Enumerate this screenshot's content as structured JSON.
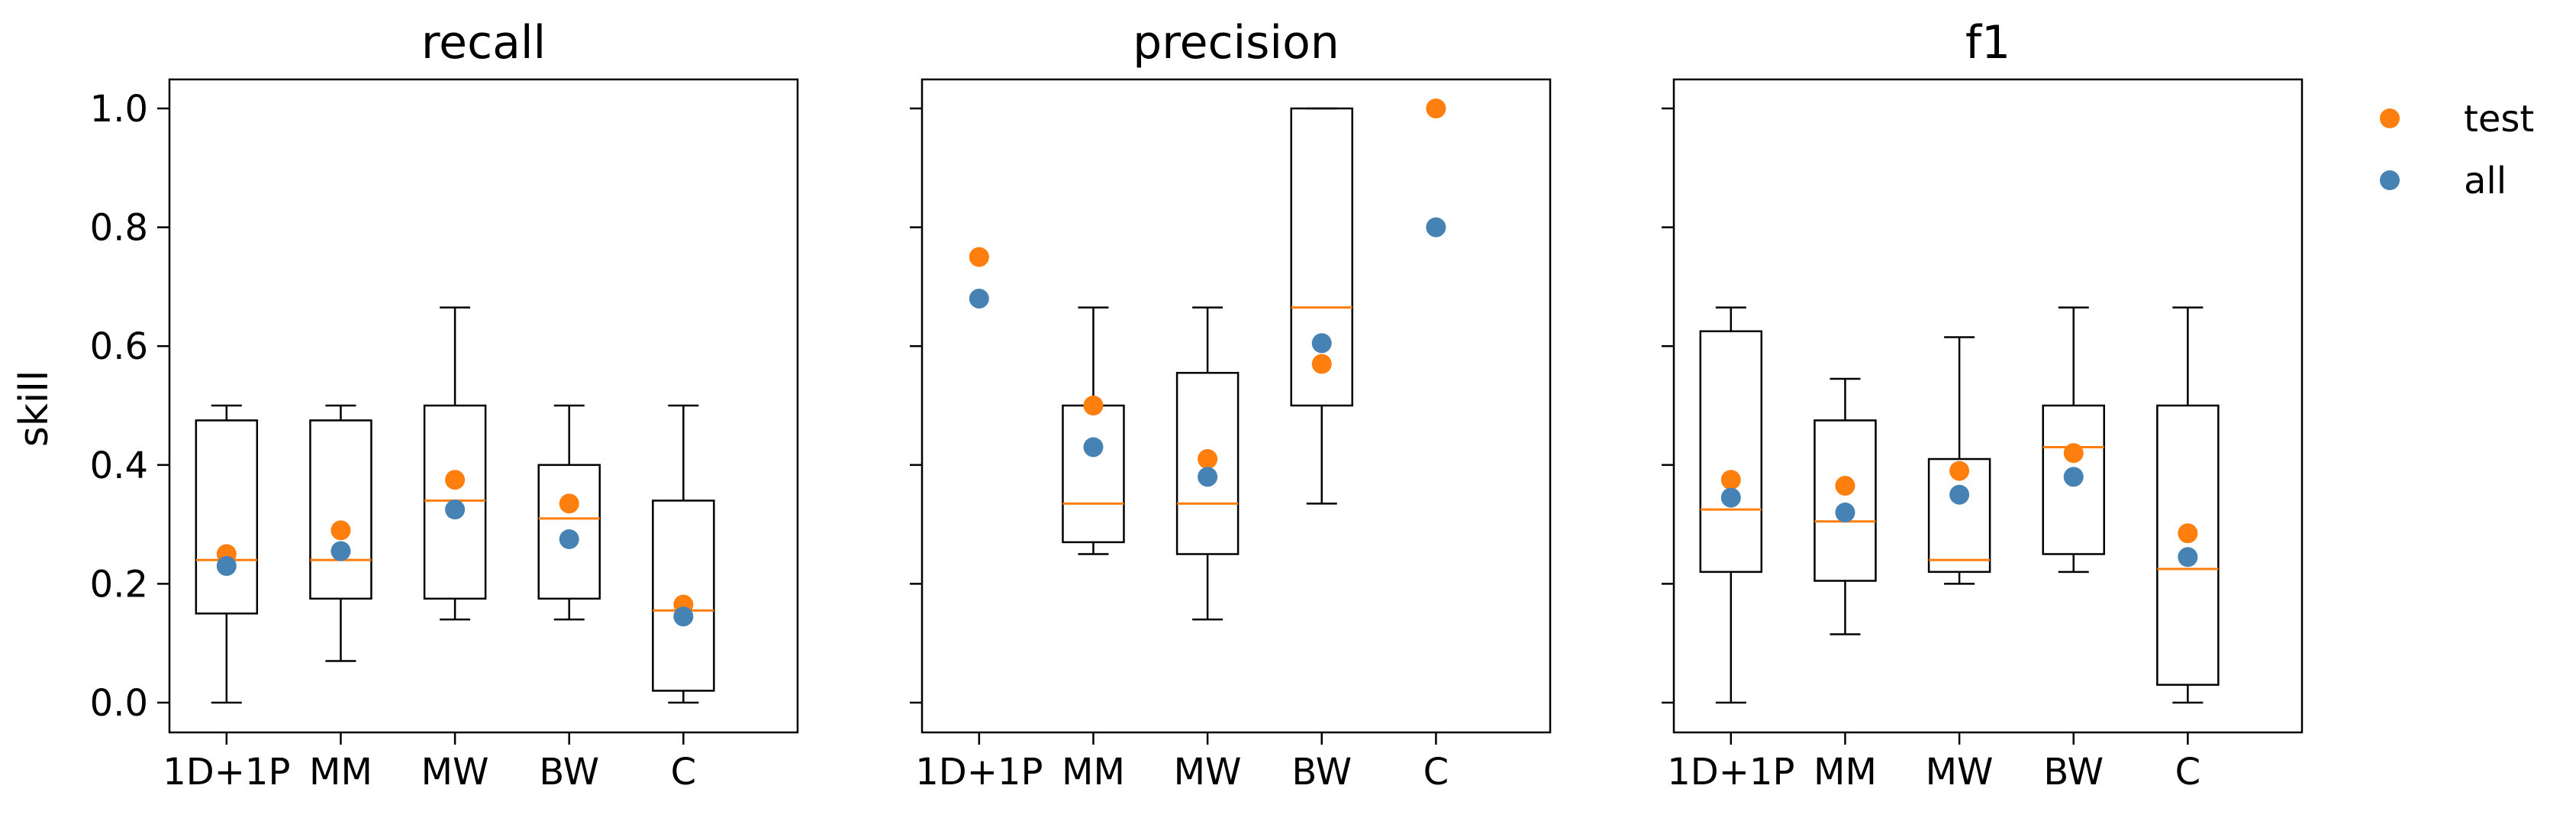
{
  "chart_data": {
    "type": "box",
    "ylabel": "skill",
    "ylim": [
      -0.05,
      1.05
    ],
    "yticks": [
      0.0,
      0.2,
      0.4,
      0.6,
      0.8,
      1.0
    ],
    "ytick_labels": [
      "0.0",
      "0.2",
      "0.4",
      "0.6",
      "0.8",
      "1.0"
    ],
    "categories": [
      "1D+1P",
      "MM",
      "MW",
      "BW",
      "C"
    ],
    "legend": {
      "position": "top-right",
      "entries": [
        {
          "label": "test",
          "color": "#ff7f0e"
        },
        {
          "label": "all",
          "color": "#4682b4"
        }
      ]
    },
    "colors": {
      "median": "#ff7f0e",
      "test": "#ff7f0e",
      "all": "#4682b4",
      "box": "#000000"
    },
    "panels": [
      {
        "title": "recall",
        "boxes": [
          {
            "category": "1D+1P",
            "whislo": 0.0,
            "q1": 0.15,
            "med": 0.24,
            "q3": 0.475,
            "whishi": 0.5
          },
          {
            "category": "MM",
            "whislo": 0.07,
            "q1": 0.175,
            "med": 0.24,
            "q3": 0.475,
            "whishi": 0.5
          },
          {
            "category": "MW",
            "whislo": 0.14,
            "q1": 0.175,
            "med": 0.34,
            "q3": 0.5,
            "whishi": 0.665
          },
          {
            "category": "BW",
            "whislo": 0.14,
            "q1": 0.175,
            "med": 0.31,
            "q3": 0.4,
            "whishi": 0.5
          },
          {
            "category": "C",
            "whislo": 0.0,
            "q1": 0.02,
            "med": 0.155,
            "q3": 0.34,
            "whishi": 0.5
          }
        ],
        "test": [
          0.25,
          0.29,
          0.375,
          0.335,
          0.165
        ],
        "all": [
          0.23,
          0.255,
          0.325,
          0.275,
          0.145
        ]
      },
      {
        "title": "precision",
        "boxes": [
          null,
          {
            "category": "MM",
            "whislo": 0.25,
            "q1": 0.27,
            "med": 0.335,
            "q3": 0.5,
            "whishi": 0.665
          },
          {
            "category": "MW",
            "whislo": 0.14,
            "q1": 0.25,
            "med": 0.335,
            "q3": 0.555,
            "whishi": 0.665
          },
          {
            "category": "BW",
            "whislo": 0.335,
            "q1": 0.5,
            "med": 0.665,
            "q3": 1.0,
            "whishi": 1.0
          },
          null
        ],
        "test": [
          0.75,
          0.5,
          0.41,
          0.57,
          1.0
        ],
        "all": [
          0.68,
          0.43,
          0.38,
          0.605,
          0.8
        ]
      },
      {
        "title": "f1",
        "boxes": [
          {
            "category": "1D+1P",
            "whislo": 0.0,
            "q1": 0.22,
            "med": 0.325,
            "q3": 0.625,
            "whishi": 0.665
          },
          {
            "category": "MM",
            "whislo": 0.115,
            "q1": 0.205,
            "med": 0.305,
            "q3": 0.475,
            "whishi": 0.545
          },
          {
            "category": "MW",
            "whislo": 0.2,
            "q1": 0.22,
            "med": 0.24,
            "q3": 0.41,
            "whishi": 0.615
          },
          {
            "category": "BW",
            "whislo": 0.22,
            "q1": 0.25,
            "med": 0.43,
            "q3": 0.5,
            "whishi": 0.665
          },
          {
            "category": "C",
            "whislo": 0.0,
            "q1": 0.03,
            "med": 0.225,
            "q3": 0.5,
            "whishi": 0.665
          }
        ],
        "test": [
          0.375,
          0.365,
          0.39,
          0.42,
          0.285
        ],
        "all": [
          0.345,
          0.32,
          0.35,
          0.38,
          0.245
        ]
      }
    ]
  }
}
